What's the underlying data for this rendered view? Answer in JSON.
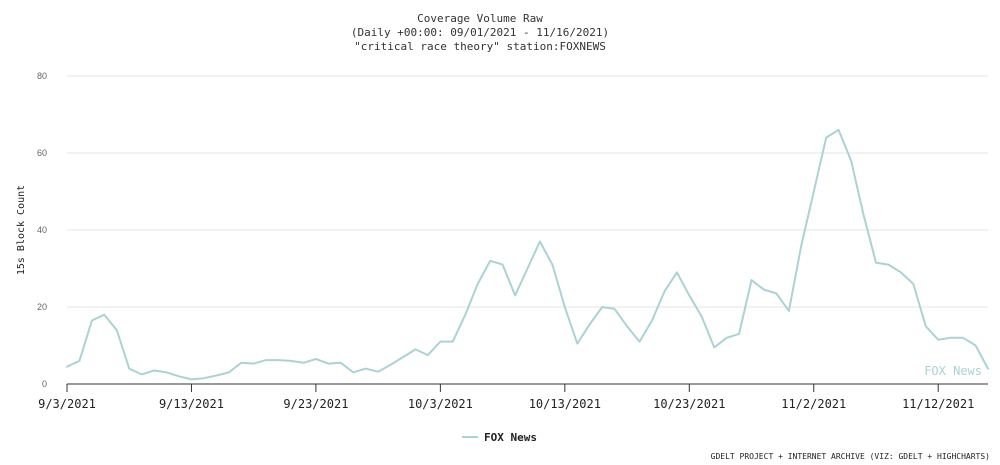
{
  "chart_data": {
    "type": "line",
    "title": [
      "Coverage Volume Raw",
      "(Daily +00:00: 09/01/2021 - 11/16/2021)",
      "\"critical race theory\" station:FOXNEWS"
    ],
    "ylabel": "15s Block Count",
    "ylim": [
      0,
      80
    ],
    "yticks": [
      0,
      20,
      40,
      60,
      80
    ],
    "xticks": [
      "9/3/2021",
      "9/13/2021",
      "9/23/2021",
      "10/3/2021",
      "10/13/2021",
      "10/23/2021",
      "11/2/2021",
      "11/12/2021"
    ],
    "legend_position": "bottom-center",
    "watermark": "FOX News",
    "credit": "GDELT PROJECT + INTERNET ARCHIVE (VIZ: GDELT + HIGHCHARTS)",
    "colors": {
      "series": "#a9d3d4",
      "grid": "#e6e6e6",
      "axis": "#333333"
    },
    "series": [
      {
        "name": "FOX News",
        "x": [
          "2021-09-03",
          "2021-09-04",
          "2021-09-05",
          "2021-09-06",
          "2021-09-07",
          "2021-09-08",
          "2021-09-09",
          "2021-09-10",
          "2021-09-11",
          "2021-09-12",
          "2021-09-13",
          "2021-09-14",
          "2021-09-15",
          "2021-09-16",
          "2021-09-17",
          "2021-09-18",
          "2021-09-19",
          "2021-09-20",
          "2021-09-21",
          "2021-09-22",
          "2021-09-23",
          "2021-09-24",
          "2021-09-25",
          "2021-09-26",
          "2021-09-27",
          "2021-09-28",
          "2021-09-29",
          "2021-09-30",
          "2021-10-01",
          "2021-10-02",
          "2021-10-03",
          "2021-10-04",
          "2021-10-05",
          "2021-10-06",
          "2021-10-07",
          "2021-10-08",
          "2021-10-09",
          "2021-10-10",
          "2021-10-11",
          "2021-10-12",
          "2021-10-13",
          "2021-10-14",
          "2021-10-15",
          "2021-10-16",
          "2021-10-17",
          "2021-10-18",
          "2021-10-19",
          "2021-10-20",
          "2021-10-21",
          "2021-10-22",
          "2021-10-23",
          "2021-10-24",
          "2021-10-25",
          "2021-10-26",
          "2021-10-27",
          "2021-10-28",
          "2021-10-29",
          "2021-10-30",
          "2021-10-31",
          "2021-11-01",
          "2021-11-02",
          "2021-11-03",
          "2021-11-04",
          "2021-11-05",
          "2021-11-06",
          "2021-11-07",
          "2021-11-08",
          "2021-11-09",
          "2021-11-10",
          "2021-11-11",
          "2021-11-12",
          "2021-11-13",
          "2021-11-14",
          "2021-11-15",
          "2021-11-16"
        ],
        "values": [
          4.5,
          6,
          16.5,
          18,
          14,
          4,
          2.5,
          3.5,
          3,
          2,
          1.2,
          1.5,
          2.2,
          3,
          5.5,
          5.3,
          6.2,
          6.2,
          6,
          5.5,
          6.5,
          5.3,
          5.5,
          3,
          4,
          3.2,
          5,
          7,
          9,
          7.5,
          11,
          11,
          18,
          26,
          32,
          31,
          23,
          30,
          37,
          31,
          20,
          10.5,
          15.5,
          20,
          19.5,
          15,
          11,
          16.5,
          24,
          29,
          23,
          17.5,
          9.5,
          12,
          13,
          27,
          24.5,
          23.5,
          19,
          36,
          50,
          64,
          66,
          58,
          44,
          31.5,
          31,
          29,
          26,
          15,
          11.5,
          12,
          12,
          10,
          4
        ]
      }
    ]
  }
}
